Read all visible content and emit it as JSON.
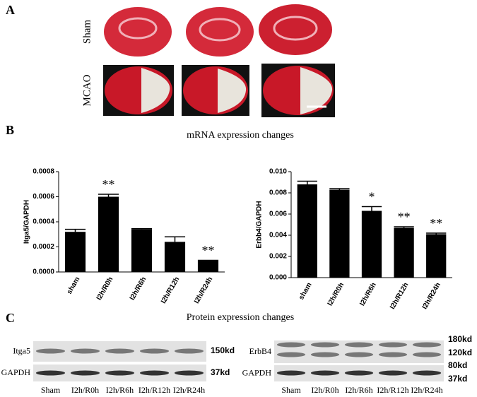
{
  "panels": {
    "a": "A",
    "b": "B",
    "c": "C"
  },
  "panel_a": {
    "rows": [
      "Sham",
      "MCAO"
    ]
  },
  "panel_b_title": "mRNA expression changes",
  "chart_data": [
    {
      "type": "bar",
      "ylabel": "Itga5/GAPDH",
      "categories": [
        "sham",
        "I2h/R0h",
        "I2h/R6h",
        "I2h/R12h",
        "I2h/R24h"
      ],
      "values": [
        0.00032,
        0.0006,
        0.00034,
        0.00024,
        9e-05
      ],
      "errors": [
        2e-05,
        2e-05,
        5e-06,
        4e-05,
        3e-06
      ],
      "annotations": [
        null,
        "**",
        null,
        null,
        "**"
      ],
      "color": "#000000",
      "ylim": [
        0,
        0.0008
      ],
      "yticks": [
        {
          "value": 0,
          "label": "0.0000"
        },
        0.0002,
        0.0004,
        0.0006,
        0.0008
      ]
    },
    {
      "type": "bar",
      "ylabel": "Erbb4/GAPDH",
      "categories": [
        "sham",
        "I2h/R0h",
        "I2h/R6h",
        "I2h/R12h",
        "I2h/R24h"
      ],
      "values": [
        0.0088,
        0.0083,
        0.0063,
        0.0047,
        0.0041
      ],
      "errors": [
        0.0003,
        0.0001,
        0.0004,
        0.0001,
        0.0001
      ],
      "annotations": [
        null,
        null,
        "*",
        "**",
        "**"
      ],
      "color": "#000000",
      "ylim": [
        0,
        0.01
      ],
      "yticks": [
        {
          "value": 0,
          "label": "0.000"
        },
        {
          "value": 0.002,
          "label": "0.002"
        },
        {
          "value": 0.004,
          "label": "0.004"
        },
        {
          "value": 0.006,
          "label": "0.006"
        },
        {
          "value": 0.008,
          "label": "0.008"
        },
        {
          "value": 0.01,
          "label": "0.010"
        }
      ]
    }
  ],
  "panel_c": {
    "title": "Protein expression changes",
    "left": {
      "rows": [
        "Itga5",
        "GAPDH"
      ],
      "sizes": [
        "150kd",
        "37kd"
      ],
      "lanes": [
        "Sham",
        "I2h/R0h",
        "I2h/R6h",
        "I2h/R12h",
        "I2h/R24h"
      ]
    },
    "right": {
      "rows": [
        "ErbB4",
        "GAPDH"
      ],
      "sizes": [
        "180kd",
        "120kd",
        "80kd",
        "37kd"
      ],
      "lanes": [
        "Sham",
        "I2h/R0h",
        "I2h/R6h",
        "I2h/R12h",
        "I2h/R24h"
      ]
    }
  }
}
